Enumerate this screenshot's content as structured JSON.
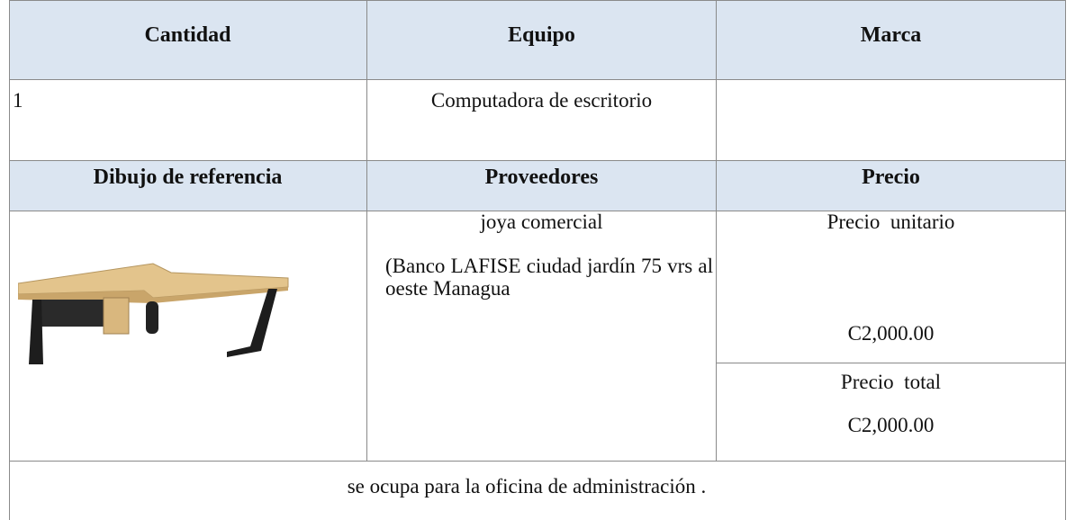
{
  "table": {
    "headers": [
      "Cantidad",
      "Equipo",
      "Marca"
    ],
    "row": {
      "cantidad": "1",
      "equipo": "Computadora de escritorio"
    },
    "headers2": [
      "Dibujo de referencia",
      "Proveedores",
      "Precio"
    ],
    "proveedor": {
      "name": "joya comercial",
      "address": "(Banco LAFISE ciudad jardín 75 vrs al oeste Managua"
    },
    "precio": {
      "unit_label": "Precio  unitario",
      "unit_value": "C2,000.00",
      "total_label": "Precio  total",
      "total_value": "C2,000.00"
    },
    "note": "se ocupa para la oficina de administración ."
  }
}
